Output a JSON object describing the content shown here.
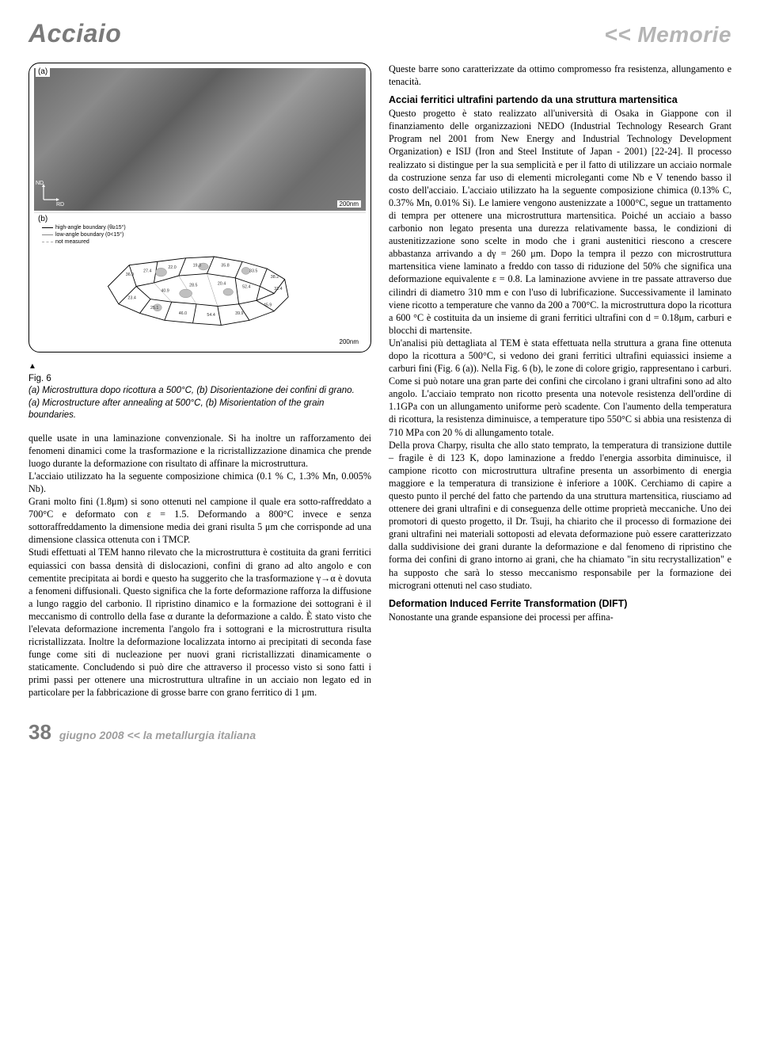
{
  "header": {
    "left": "Acciaio",
    "right": "<< Memorie"
  },
  "figure": {
    "label_a": "(a)",
    "label_b": "(b)",
    "scale_a": "200nm",
    "scale_b": "200nm",
    "axes": {
      "nd": "ND",
      "rd": "RD"
    },
    "legend": {
      "l1": "high-angle boundary (θ≥15°)",
      "l2": "low-angle boundary (0<15°)",
      "l3": "not measured"
    },
    "number": "Fig. 6",
    "caption_it": "(a) Microstruttura dopo ricottura a 500°C, (b) Disorientazione dei confini di grano.",
    "caption_en": "(a) Microstructure after annealing at 500°C, (b) Misorientation of the grain boundaries."
  },
  "left_body": "quelle usate in una laminazione convenzionale. Si ha inoltre un rafforzamento dei fenomeni dinamici come la trasformazione e la ricristallizzazione dinamica che prende luogo durante la deformazione con risultato di affinare la microstruttura.\nL'acciaio utilizzato ha la seguente composizione chimica (0.1 % C, 1.3% Mn, 0.005% Nb).\nGrani molto fini (1.8μm) si sono ottenuti nel campione il quale era sotto-raffreddato a 700°C e deformato con ε = 1.5. Deformando a 800°C invece e senza sottoraffreddamento la dimensione media dei grani risulta 5 μm che corrisponde ad una dimensione classica ottenuta con i TMCP.\nStudi effettuati al TEM hanno rilevato che la microstruttura è costituita da grani ferritici equiassici con bassa densità di dislocazioni, confini di grano ad alto angolo e con cementite precipitata ai bordi e questo ha suggerito che la trasformazione γ→α è dovuta a fenomeni diffusionali. Questo significa che la forte deformazione rafforza la diffusione a lungo raggio del carbonio. Il ripristino dinamico e la formazione dei sottograni è il meccanismo di controllo della fase α durante la deformazione a caldo. È stato visto che l'elevata deformazione incrementa l'angolo fra i sottograni e la microstruttura risulta ricristallizzata. Inoltre la deformazione localizzata intorno ai precipitati di seconda fase funge come siti di nucleazione per nuovi grani ricristallizzati dinamicamente o staticamente. Concludendo si può dire che attraverso il processo visto si sono fatti i primi passi per ottenere una microstruttura ultrafine in un acciaio non legato ed in particolare per la fabbricazione di grosse barre con grano ferritico di 1 μm.",
  "right_intro": "Queste barre sono caratterizzate da ottimo compromesso fra resistenza, allungamento e tenacità.",
  "section1": {
    "title": "Acciai ferritici ultrafini partendo da una struttura martensitica",
    "body": "Questo progetto è stato realizzato all'università di Osaka in Giappone con il finanziamento delle organizzazioni NEDO (Industrial Technology Research Grant Program nel 2001 from New Energy and Industrial Technology Development Organization) e ISIJ (Iron and Steel Institute of Japan - 2001) [22-24]. Il processo realizzato si distingue per la sua semplicità e per il fatto di utilizzare un acciaio normale da costruzione senza far uso di elementi microleganti come Nb e V tenendo basso il costo dell'acciaio. L'acciaio utilizzato ha la seguente composizione chimica (0.13% C, 0.37% Mn, 0.01% Si). Le lamiere vengono austenizzate a 1000°C, segue un trattamento di tempra per ottenere una microstruttura martensitica. Poiché un acciaio a basso carbonio non legato presenta una durezza relativamente bassa, le condizioni di austenitizzazione sono scelte in modo che i grani austenitici riescono a crescere abbastanza arrivando a dγ = 260 μm. Dopo la tempra il pezzo con microstruttura martensitica viene laminato a freddo con tasso di riduzione del 50% che significa una deformazione equivalente ε = 0.8. La laminazione avviene in tre passate attraverso due cilindri di diametro 310 mm e con l'uso di lubrificazione. Successivamente il laminato viene ricotto a temperature che vanno da 200 a 700°C. la microstruttura dopo la ricottura a 600 °C è costituita da un insieme di grani ferritici ultrafini con d = 0.18μm, carburi e blocchi di martensite.\nUn'analisi più dettagliata al TEM è stata effettuata nella struttura a grana fine ottenuta dopo la ricottura a 500°C, si vedono dei grani ferritici ultrafini equiassici insieme a carburi fini (Fig. 6 (a)). Nella Fig. 6 (b), le zone di colore grigio, rappresentano i carburi. Come si può notare una gran parte dei confini che circolano i grani ultrafini sono ad alto angolo. L'acciaio temprato non ricotto presenta una notevole resistenza dell'ordine di 1.1GPa con un allungamento uniforme però scadente. Con l'aumento della temperatura di ricottura, la resistenza diminuisce, a temperature tipo 550°C si abbia una resistenza di 710 MPa con 20 % di allungamento totale.\nDella prova Charpy, risulta che allo stato temprato, la temperatura di transizione duttile – fragile è di 123 K, dopo laminazione a freddo l'energia assorbita diminuisce, il campione ricotto con microstruttura ultrafine presenta un assorbimento di energia maggiore e la temperatura di transizione è inferiore a 100K. Cerchiamo di capire a questo punto il perché del fatto che partendo da una struttura martensitica, riusciamo ad ottenere dei grani ultrafini e di conseguenza delle ottime proprietà meccaniche. Uno dei promotori di questo progetto, il Dr. Tsuji, ha chiarito che il processo di formazione dei grani ultrafini nei materiali sottoposti ad elevata deformazione può essere caratterizzato dalla suddivisione dei grani durante la deformazione e dal fenomeno di ripristino che forma dei confini di grano intorno ai grani, che ha chiamato \"in situ recrystallization\" e ha supposto che sarà lo stesso meccanismo responsabile per la formazione dei micrograni ottenuti nel caso studiato."
  },
  "section2": {
    "title": "Deformation Induced Ferrite Transformation (DIFT)",
    "body": "Nonostante una grande espansione dei processi per affina-"
  },
  "footer": {
    "page": "38",
    "text": "giugno 2008 << la metallurgia italiana"
  },
  "colors": {
    "header_gray": "#7a7a7a",
    "header_light": "#b5b5b5",
    "footer_gray": "#9e9e9e"
  }
}
